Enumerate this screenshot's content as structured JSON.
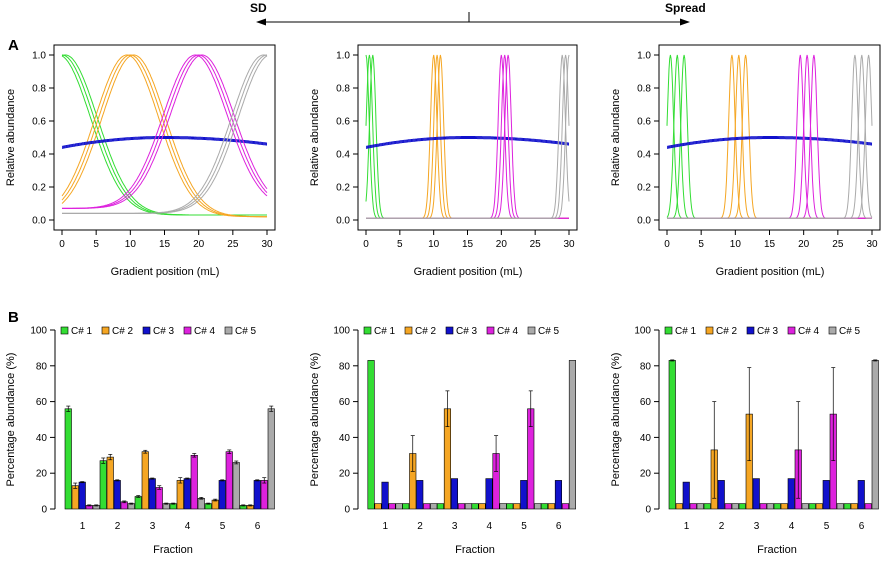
{
  "header": {
    "left_label": "SD",
    "right_label": "Spread"
  },
  "panel_labels": {
    "a": "A",
    "b": "B"
  },
  "colors": {
    "c1": "#33dd33",
    "c2": "#f5a623",
    "c3": "#1111cc",
    "c4": "#dd22dd",
    "c5": "#aaaaaa"
  },
  "chart_data": [
    {
      "type": "line",
      "title": "",
      "xlabel": "Gradient position (mL)",
      "ylabel": "Relative abundance",
      "xlim": [
        0,
        30
      ],
      "ylim": [
        0,
        1
      ],
      "xticks": [
        "0",
        "5",
        "10",
        "15",
        "20",
        "25",
        "30"
      ],
      "yticks": [
        "0.0",
        "0.2",
        "0.4",
        "0.6",
        "0.8",
        "1.0"
      ],
      "series": [
        {
          "name": "C# 1",
          "shape": "falling",
          "peak_x": 0,
          "width": 6.0,
          "base": 0.03
        },
        {
          "name": "C# 2",
          "shape": "peak",
          "peak_x": 10,
          "width": 6.0,
          "base": 0.02
        },
        {
          "name": "C# 3",
          "shape": "flat",
          "start": 0.44,
          "mid": 0.5,
          "end": 0.46
        },
        {
          "name": "C# 4",
          "shape": "peak",
          "peak_x": 20,
          "width": 6.0,
          "base": 0.07
        },
        {
          "name": "C# 5",
          "shape": "rising",
          "peak_x": 30,
          "width": 6.0,
          "base": 0.04
        }
      ]
    },
    {
      "type": "line",
      "title": "",
      "xlabel": "Gradient position (mL)",
      "ylabel": "Relative abundance",
      "xlim": [
        0,
        30
      ],
      "ylim": [
        0,
        1
      ],
      "xticks": [
        "0",
        "5",
        "10",
        "15",
        "20",
        "25",
        "30"
      ],
      "yticks": [
        "0.0",
        "0.2",
        "0.4",
        "0.6",
        "0.8",
        "1.0"
      ],
      "series": [
        {
          "name": "C# 1",
          "shape": "peak",
          "peak_x": 0.5,
          "width": 1.0,
          "base": 0.01
        },
        {
          "name": "C# 2",
          "shape": "peak",
          "peak_x": 10.5,
          "width": 1.0,
          "base": 0.01
        },
        {
          "name": "C# 3",
          "shape": "flat",
          "start": 0.44,
          "mid": 0.5,
          "end": 0.46
        },
        {
          "name": "C# 4",
          "shape": "peak",
          "peak_x": 20.5,
          "width": 1.0,
          "base": 0.01
        },
        {
          "name": "C# 5",
          "shape": "peak",
          "peak_x": 29.5,
          "width": 1.0,
          "base": 0.01
        }
      ]
    },
    {
      "type": "line",
      "title": "",
      "xlabel": "Gradient position (mL)",
      "ylabel": "Relative abundance",
      "xlim": [
        0,
        30
      ],
      "ylim": [
        0,
        1
      ],
      "xticks": [
        "0",
        "5",
        "10",
        "15",
        "20",
        "25",
        "30"
      ],
      "yticks": [
        "0.0",
        "0.2",
        "0.4",
        "0.6",
        "0.8",
        "1.0"
      ],
      "series": [
        {
          "name": "C# 1",
          "shape": "multi",
          "peaks": [
            0.5,
            1.5,
            2.5
          ],
          "width": 1.0,
          "base": 0.01
        },
        {
          "name": "C# 2",
          "shape": "multi",
          "peaks": [
            9.5,
            10.5,
            11.5
          ],
          "width": 1.0,
          "base": 0.01
        },
        {
          "name": "C# 3",
          "shape": "flat",
          "start": 0.44,
          "mid": 0.5,
          "end": 0.46
        },
        {
          "name": "C# 4",
          "shape": "multi",
          "peaks": [
            19.5,
            20.5,
            21.5
          ],
          "width": 1.0,
          "base": 0.01
        },
        {
          "name": "C# 5",
          "shape": "multi",
          "peaks": [
            27.5,
            28.5,
            29.5
          ],
          "width": 1.0,
          "base": 0.01
        }
      ]
    },
    {
      "type": "bar",
      "title": "",
      "xlabel": "Fraction",
      "ylabel": "Percentage abundance (%)",
      "ylim": [
        0,
        100
      ],
      "yticks": [
        "0",
        "20",
        "40",
        "60",
        "80",
        "100"
      ],
      "categories": [
        "1",
        "2",
        "3",
        "4",
        "5",
        "6"
      ],
      "series": [
        {
          "name": "C# 1",
          "values": [
            56,
            27,
            7,
            3,
            3,
            2
          ],
          "errors": [
            1.5,
            1.5,
            0.5,
            0.3,
            0.3,
            0.3
          ]
        },
        {
          "name": "C# 2",
          "values": [
            13,
            29,
            32,
            16,
            5,
            2
          ],
          "errors": [
            1.5,
            1.5,
            0.8,
            1.5,
            0.5,
            0.3
          ]
        },
        {
          "name": "C# 3",
          "values": [
            15,
            16,
            17,
            17,
            16,
            16
          ],
          "errors": [
            0.3,
            0.3,
            0.3,
            0.3,
            0.3,
            0.3
          ]
        },
        {
          "name": "C# 4",
          "values": [
            2,
            4,
            12,
            30,
            32,
            16
          ],
          "errors": [
            0.3,
            0.5,
            1.0,
            1.0,
            1.0,
            1.5
          ]
        },
        {
          "name": "C# 5",
          "values": [
            2,
            3,
            3,
            6,
            26,
            56
          ],
          "errors": [
            0.3,
            0.3,
            0.3,
            0.5,
            0.8,
            1.5
          ]
        }
      ]
    },
    {
      "type": "bar",
      "title": "",
      "xlabel": "Fraction",
      "ylabel": "Percentage abundance (%)",
      "ylim": [
        0,
        100
      ],
      "yticks": [
        "0",
        "20",
        "40",
        "60",
        "80",
        "100"
      ],
      "categories": [
        "1",
        "2",
        "3",
        "4",
        "5",
        "6"
      ],
      "series": [
        {
          "name": "C# 1",
          "values": [
            83,
            3,
            3,
            3,
            3,
            3
          ],
          "errors": [
            0,
            0,
            0,
            0,
            0,
            0
          ]
        },
        {
          "name": "C# 2",
          "values": [
            3,
            31,
            56,
            3,
            3,
            3
          ],
          "errors": [
            0,
            10,
            10,
            0,
            0,
            0
          ]
        },
        {
          "name": "C# 3",
          "values": [
            15,
            16,
            17,
            17,
            16,
            16
          ],
          "errors": [
            0,
            0,
            0,
            0,
            0,
            0
          ]
        },
        {
          "name": "C# 4",
          "values": [
            3,
            3,
            3,
            31,
            56,
            3
          ],
          "errors": [
            0,
            0,
            0,
            10,
            10,
            0
          ]
        },
        {
          "name": "C# 5",
          "values": [
            3,
            3,
            3,
            3,
            3,
            83
          ],
          "errors": [
            0,
            0,
            0,
            0,
            0,
            0
          ]
        }
      ]
    },
    {
      "type": "bar",
      "title": "",
      "xlabel": "Fraction",
      "ylabel": "Percentage abundance (%)",
      "ylim": [
        0,
        100
      ],
      "yticks": [
        "0",
        "20",
        "40",
        "60",
        "80",
        "100"
      ],
      "categories": [
        "1",
        "2",
        "3",
        "4",
        "5",
        "6"
      ],
      "series": [
        {
          "name": "C# 1",
          "values": [
            83,
            3,
            3,
            3,
            3,
            3
          ],
          "errors": [
            0.3,
            0,
            0,
            0,
            0,
            0
          ]
        },
        {
          "name": "C# 2",
          "values": [
            3,
            33,
            53,
            3,
            3,
            3
          ],
          "errors": [
            0,
            27,
            26,
            0,
            0,
            0
          ]
        },
        {
          "name": "C# 3",
          "values": [
            15,
            16,
            17,
            17,
            16,
            16
          ],
          "errors": [
            0,
            0,
            0,
            0,
            0,
            0
          ]
        },
        {
          "name": "C# 4",
          "values": [
            3,
            3,
            3,
            33,
            53,
            3
          ],
          "errors": [
            0,
            0,
            0,
            27,
            26,
            0
          ]
        },
        {
          "name": "C# 5",
          "values": [
            3,
            3,
            3,
            3,
            3,
            83
          ],
          "errors": [
            0,
            0,
            0,
            0,
            0,
            0.3
          ]
        }
      ]
    }
  ]
}
